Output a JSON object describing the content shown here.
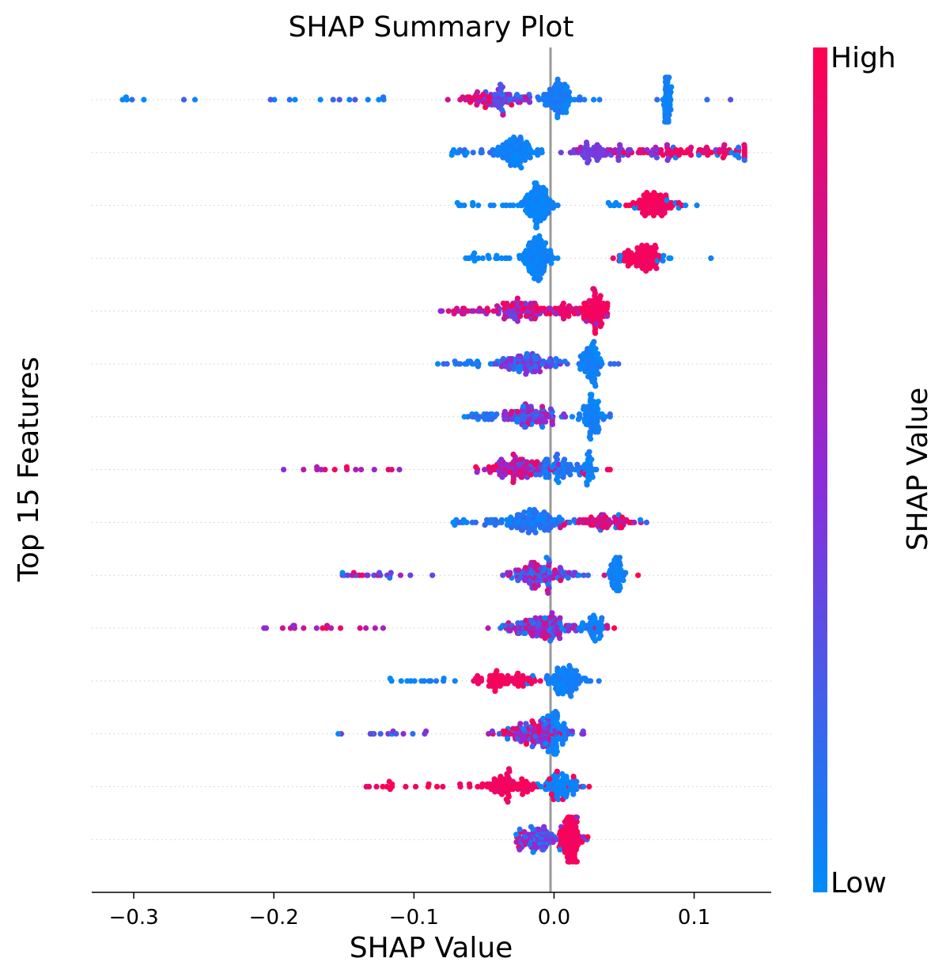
{
  "chart_data": {
    "type": "scatter",
    "subtype": "beeswarm",
    "title": "SHAP Summary Plot",
    "xlabel": "SHAP Value",
    "ylabel": "Top 15 Features",
    "xlim": [
      -0.33,
      0.155
    ],
    "xticks": [
      -0.3,
      -0.2,
      -0.1,
      0.0,
      0.1
    ],
    "xtick_labels": [
      "−0.3",
      "−0.2",
      "−0.1",
      "0.0",
      "0.1"
    ],
    "feature_count": 15,
    "feature_labels_visible": false,
    "zero_line": true,
    "grid": "dotted horizontal row guides",
    "colorbar": {
      "label": "SHAP Value",
      "high_label": "High",
      "low_label": "Low",
      "low_color": "#008bfb",
      "mid_color": "#8f2ad8",
      "high_color": "#ff0052"
    },
    "rows": [
      {
        "rank": 1,
        "min": -0.308,
        "max": 0.126,
        "clusters": [
          {
            "c": -0.035,
            "s": 0.012,
            "n": 70,
            "v": [
              0.05,
              0.6
            ]
          },
          {
            "c": 0.003,
            "s": 0.006,
            "n": 90,
            "v": [
              0.0,
              0.15
            ]
          },
          {
            "c": 0.081,
            "s": 0.0015,
            "n": 60,
            "v": [
              0.0,
              0.1
            ]
          },
          {
            "c": -0.05,
            "s": 0.015,
            "n": 25,
            "v": [
              0.7,
              1.0
            ]
          }
        ],
        "tail": [
          -0.308,
          -0.1,
          0.126
        ],
        "tailv": [
          0.0,
          0.3
        ]
      },
      {
        "rank": 2,
        "min": -0.073,
        "max": 0.136,
        "clusters": [
          {
            "c": -0.025,
            "s": 0.008,
            "n": 100,
            "v": [
              0.0,
              0.1
            ]
          },
          {
            "c": 0.025,
            "s": 0.006,
            "n": 40,
            "v": [
              0.35,
              0.45
            ]
          },
          {
            "c": 0.095,
            "s": 0.025,
            "n": 70,
            "v": [
              0.8,
              1.0
            ]
          },
          {
            "c": 0.05,
            "s": 0.02,
            "n": 40,
            "v": [
              0.3,
              0.7
            ]
          }
        ],
        "tail": [
          -0.073,
          -0.04,
          0.136
        ],
        "tailv": [
          0.0,
          0.2
        ]
      },
      {
        "rank": 3,
        "min": -0.069,
        "max": 0.102,
        "clusters": [
          {
            "c": -0.012,
            "s": 0.006,
            "n": 110,
            "v": [
              0.0,
              0.08
            ]
          },
          {
            "c": 0.07,
            "s": 0.008,
            "n": 90,
            "v": [
              0.9,
              1.0
            ]
          }
        ],
        "tail": [
          -0.069,
          -0.03,
          0.102
        ],
        "tailv": [
          0.0,
          0.05
        ]
      },
      {
        "rank": 4,
        "min": -0.063,
        "max": 0.112,
        "clusters": [
          {
            "c": -0.012,
            "s": 0.006,
            "n": 110,
            "v": [
              0.0,
              0.08
            ]
          },
          {
            "c": 0.062,
            "s": 0.008,
            "n": 90,
            "v": [
              0.9,
              1.0
            ]
          }
        ],
        "tail": [
          -0.063,
          -0.03,
          0.112
        ],
        "tailv": [
          0.0,
          0.05
        ]
      },
      {
        "rank": 5,
        "min": -0.081,
        "max": 0.038,
        "clusters": [
          {
            "c": -0.025,
            "s": 0.012,
            "n": 90,
            "v": [
              0.3,
              1.0
            ]
          },
          {
            "c": 0.03,
            "s": 0.004,
            "n": 70,
            "v": [
              0.9,
              1.0
            ]
          },
          {
            "c": 0.01,
            "s": 0.01,
            "n": 40,
            "v": [
              0.8,
              1.0
            ]
          }
        ],
        "tail": [
          -0.081,
          -0.05,
          0.038
        ],
        "tailv": [
          0.5,
          1.0
        ]
      },
      {
        "rank": 6,
        "min": -0.083,
        "max": 0.046,
        "clusters": [
          {
            "c": -0.022,
            "s": 0.012,
            "n": 100,
            "v": [
              0.0,
              0.6
            ]
          },
          {
            "c": 0.027,
            "s": 0.004,
            "n": 70,
            "v": [
              0.0,
              0.1
            ]
          }
        ],
        "tail": [
          -0.083,
          -0.05,
          0.046
        ],
        "tailv": [
          0.0,
          0.2
        ]
      },
      {
        "rank": 7,
        "min": -0.064,
        "max": 0.04,
        "clusters": [
          {
            "c": -0.018,
            "s": 0.01,
            "n": 90,
            "v": [
              0.0,
              0.9
            ]
          },
          {
            "c": 0.027,
            "s": 0.004,
            "n": 70,
            "v": [
              0.0,
              0.1
            ]
          }
        ],
        "tail": [
          -0.064,
          -0.04,
          0.04
        ],
        "tailv": [
          0.0,
          0.2
        ]
      },
      {
        "rank": 8,
        "min": -0.193,
        "max": 0.04,
        "clusters": [
          {
            "c": -0.025,
            "s": 0.012,
            "n": 100,
            "v": [
              0.3,
              1.0
            ]
          },
          {
            "c": 0.005,
            "s": 0.008,
            "n": 60,
            "v": [
              0.0,
              0.2
            ]
          },
          {
            "c": 0.025,
            "s": 0.002,
            "n": 30,
            "v": [
              0.0,
              0.1
            ]
          }
        ],
        "tail": [
          -0.193,
          -0.11,
          0.04
        ],
        "tailv": [
          0.5,
          1.0
        ]
      },
      {
        "rank": 9,
        "min": -0.072,
        "max": 0.066,
        "clusters": [
          {
            "c": -0.015,
            "s": 0.01,
            "n": 110,
            "v": [
              0.0,
              0.2
            ]
          },
          {
            "c": 0.035,
            "s": 0.012,
            "n": 60,
            "v": [
              0.6,
              1.0
            ]
          }
        ],
        "tail": [
          -0.072,
          -0.04,
          0.066
        ],
        "tailv": [
          0.0,
          0.2
        ]
      },
      {
        "rank": 10,
        "min": -0.151,
        "max": 0.06,
        "clusters": [
          {
            "c": -0.01,
            "s": 0.012,
            "n": 120,
            "v": [
              0.0,
              0.9
            ]
          },
          {
            "c": 0.045,
            "s": 0.003,
            "n": 50,
            "v": [
              0.0,
              0.1
            ]
          }
        ],
        "tail": [
          -0.151,
          -0.08,
          0.06
        ],
        "tailv": [
          0.0,
          1.0
        ]
      },
      {
        "rank": 11,
        "min": -0.207,
        "max": 0.043,
        "clusters": [
          {
            "c": -0.01,
            "s": 0.014,
            "n": 130,
            "v": [
              0.0,
              0.9
            ]
          },
          {
            "c": 0.028,
            "s": 0.004,
            "n": 40,
            "v": [
              0.0,
              0.1
            ]
          }
        ],
        "tail": [
          -0.207,
          -0.12,
          0.043
        ],
        "tailv": [
          0.5,
          1.0
        ]
      },
      {
        "rank": 12,
        "min": -0.117,
        "max": 0.032,
        "clusters": [
          {
            "c": -0.035,
            "s": 0.012,
            "n": 70,
            "v": [
              0.9,
              1.0
            ]
          },
          {
            "c": 0.008,
            "s": 0.006,
            "n": 80,
            "v": [
              0.0,
              0.1
            ]
          }
        ],
        "tail": [
          -0.117,
          -0.07,
          0.032
        ],
        "tailv": [
          0.0,
          0.1
        ]
      },
      {
        "rank": 13,
        "min": -0.154,
        "max": 0.021,
        "clusters": [
          {
            "c": -0.015,
            "s": 0.012,
            "n": 110,
            "v": [
              0.2,
              1.0
            ]
          },
          {
            "c": 0.002,
            "s": 0.004,
            "n": 60,
            "v": [
              0.0,
              0.1
            ]
          }
        ],
        "tail": [
          -0.154,
          -0.09,
          0.021
        ],
        "tailv": [
          0.0,
          0.5
        ]
      },
      {
        "rank": 14,
        "min": -0.134,
        "max": 0.025,
        "clusters": [
          {
            "c": -0.035,
            "s": 0.012,
            "n": 90,
            "v": [
              0.9,
              1.0
            ]
          },
          {
            "c": 0.006,
            "s": 0.006,
            "n": 70,
            "v": [
              0.0,
              0.1
            ]
          }
        ],
        "tail": [
          -0.134,
          -0.075,
          0.025
        ],
        "tailv": [
          0.9,
          1.0
        ]
      },
      {
        "rank": 15,
        "min": -0.027,
        "max": 0.024,
        "clusters": [
          {
            "c": -0.01,
            "s": 0.006,
            "n": 70,
            "v": [
              0.0,
              0.6
            ]
          },
          {
            "c": 0.012,
            "s": 0.004,
            "n": 110,
            "v": [
              0.9,
              1.0
            ]
          }
        ],
        "tail": [
          -0.027,
          -0.02,
          0.024
        ],
        "tailv": [
          0.0,
          1.0
        ]
      }
    ]
  }
}
